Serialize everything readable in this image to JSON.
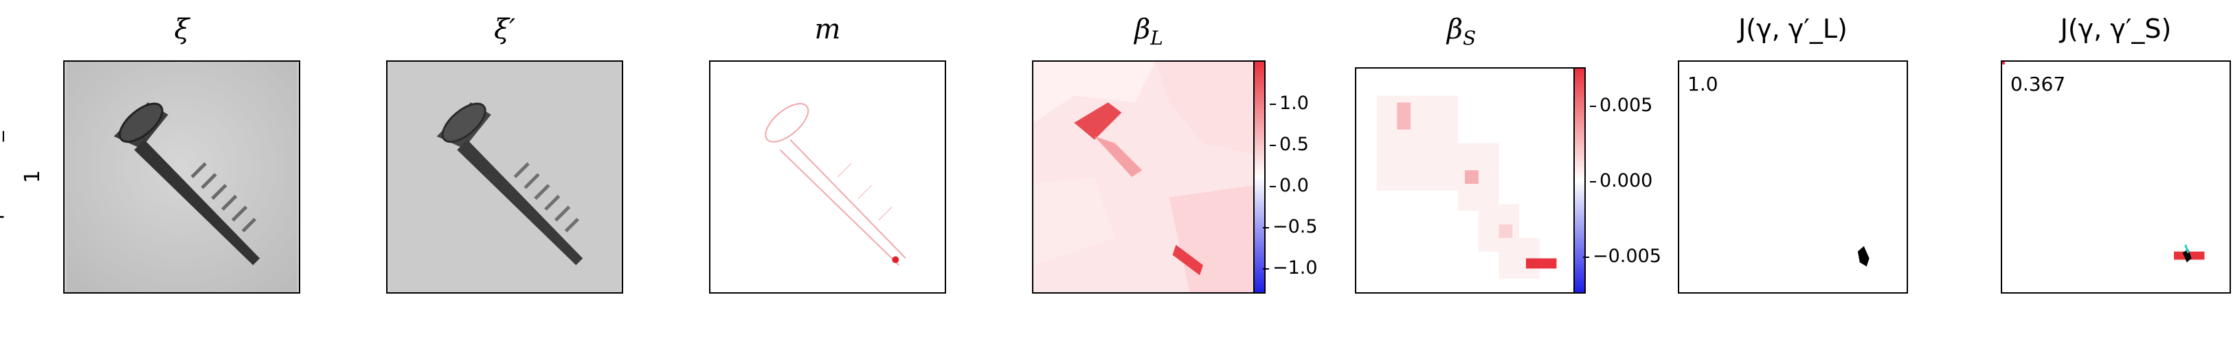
{
  "row_label": {
    "line1": "manipulated_front",
    "line2": "1"
  },
  "panels": [
    {
      "title": "ξ"
    },
    {
      "title": "ξ′"
    },
    {
      "title": "m"
    },
    {
      "title": "β_L",
      "title_main": "β",
      "title_sub": "L",
      "colorbar_ticks": [
        "1.0",
        "0.5",
        "0.0",
        "−0.5",
        "−1.0"
      ]
    },
    {
      "title": "β_S",
      "title_main": "β",
      "title_sub": "S",
      "colorbar_ticks": [
        "0.005",
        "0.000",
        "−0.005"
      ]
    },
    {
      "title": "J(γ, γ′_L)",
      "value": "1.0"
    },
    {
      "title": "J(γ, γ′_S)",
      "value": "0.367"
    }
  ],
  "colors": {
    "positive": "#e8323c",
    "negative": "#1e1ee6",
    "neutral": "#ffffff"
  }
}
